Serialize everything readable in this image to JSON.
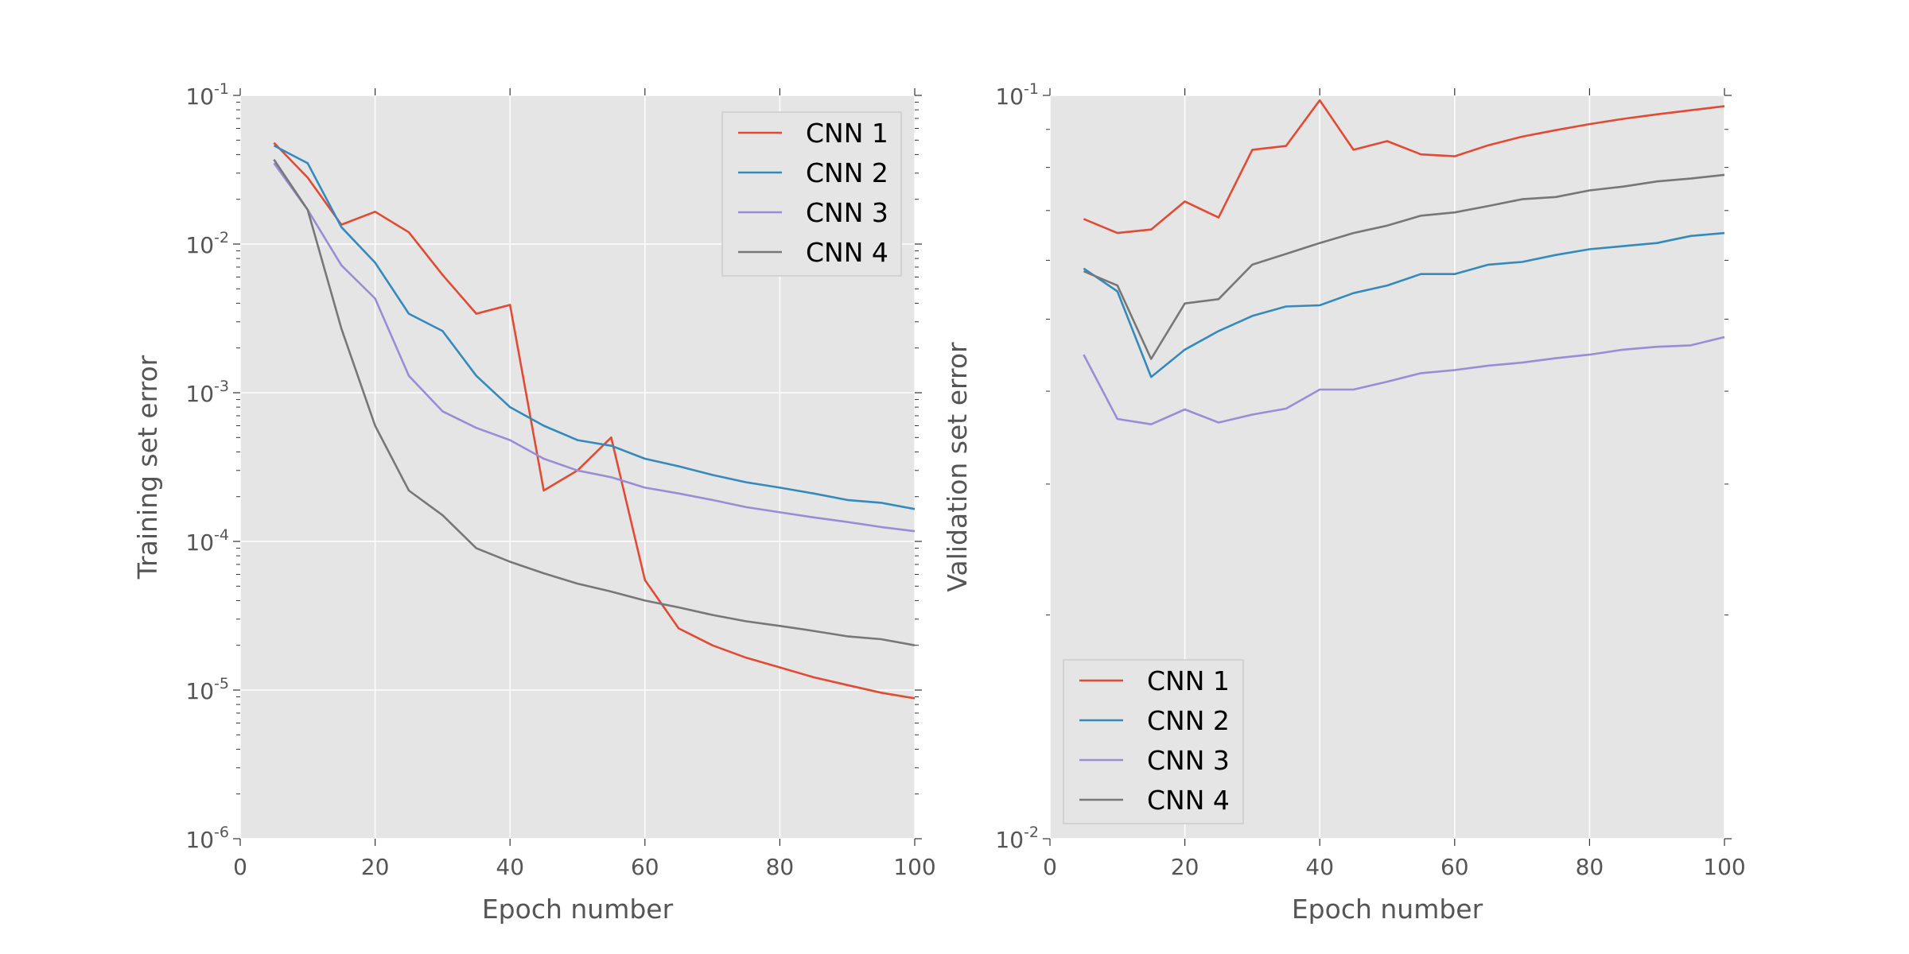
{
  "colors": {
    "background": "#ffffff",
    "axes_face": "#e5e5e5",
    "grid": "#ffffff",
    "tick_text": "#555555",
    "label_text": "#555555",
    "legend_text": "#000000"
  },
  "chart_data": [
    {
      "type": "line",
      "xlabel": "Epoch number",
      "ylabel": "Training set error",
      "xlim": [
        0,
        100
      ],
      "ylim": [
        1e-06,
        0.1
      ],
      "yscale": "log",
      "grid": true,
      "legend_position": "top-right",
      "x_ticks": [
        0,
        20,
        40,
        60,
        80,
        100
      ],
      "y_ticks": [
        {
          "value": 1e-06,
          "base": "10",
          "exp": "-6"
        },
        {
          "value": 1e-05,
          "base": "10",
          "exp": "-5"
        },
        {
          "value": 0.0001,
          "base": "10",
          "exp": "-4"
        },
        {
          "value": 0.001,
          "base": "10",
          "exp": "-3"
        },
        {
          "value": 0.01,
          "base": "10",
          "exp": "-2"
        },
        {
          "value": 0.1,
          "base": "10",
          "exp": "-1"
        }
      ],
      "x": [
        5,
        10,
        15,
        20,
        25,
        30,
        35,
        40,
        45,
        50,
        55,
        60,
        65,
        70,
        75,
        80,
        85,
        90,
        95,
        100
      ],
      "series": [
        {
          "name": "CNN 1",
          "color": "#e24a33",
          "values": [
            0.048,
            0.028,
            0.0135,
            0.0165,
            0.012,
            0.0062,
            0.0034,
            0.0039,
            0.00022,
            0.0003,
            0.0005,
            5.5e-05,
            2.6e-05,
            2e-05,
            1.65e-05,
            1.42e-05,
            1.22e-05,
            1.08e-05,
            9.6e-06,
            8.8e-06
          ]
        },
        {
          "name": "CNN 2",
          "color": "#348abd",
          "values": [
            0.046,
            0.035,
            0.013,
            0.0075,
            0.0034,
            0.0026,
            0.0013,
            0.0008,
            0.0006,
            0.00048,
            0.00044,
            0.00036,
            0.00032,
            0.00028,
            0.00025,
            0.00023,
            0.00021,
            0.00019,
            0.000182,
            0.000165
          ]
        },
        {
          "name": "CNN 3",
          "color": "#988ed5",
          "values": [
            0.035,
            0.017,
            0.0072,
            0.0043,
            0.0013,
            0.00075,
            0.00058,
            0.00048,
            0.00036,
            0.0003,
            0.00027,
            0.00023,
            0.00021,
            0.00019,
            0.00017,
            0.000157,
            0.000145,
            0.000135,
            0.000125,
            0.000117
          ]
        },
        {
          "name": "CNN 4",
          "color": "#777777",
          "values": [
            0.037,
            0.017,
            0.0027,
            0.0006,
            0.00022,
            0.00015,
            9e-05,
            7.3e-05,
            6.1e-05,
            5.2e-05,
            4.6e-05,
            4e-05,
            3.6e-05,
            3.2e-05,
            2.9e-05,
            2.7e-05,
            2.5e-05,
            2.3e-05,
            2.2e-05,
            2e-05
          ]
        }
      ]
    },
    {
      "type": "line",
      "xlabel": "Epoch number",
      "ylabel": "Validation set error",
      "xlim": [
        0,
        100
      ],
      "ylim": [
        0.01,
        0.1
      ],
      "yscale": "log",
      "grid": true,
      "legend_position": "bottom-left",
      "x_ticks": [
        0,
        20,
        40,
        60,
        80,
        100
      ],
      "y_ticks": [
        {
          "value": 0.01,
          "base": "10",
          "exp": "-2"
        },
        {
          "value": 0.1,
          "base": "10",
          "exp": "-1"
        }
      ],
      "x": [
        5,
        10,
        15,
        20,
        25,
        30,
        35,
        40,
        45,
        50,
        55,
        60,
        65,
        70,
        75,
        80,
        85,
        90,
        95,
        100
      ],
      "series": [
        {
          "name": "CNN 1",
          "color": "#e24a33",
          "values": [
            0.0682,
            0.0653,
            0.066,
            0.072,
            0.0685,
            0.0845,
            0.0855,
            0.0985,
            0.0845,
            0.0868,
            0.0833,
            0.0828,
            0.0857,
            0.088,
            0.0898,
            0.0915,
            0.093,
            0.0943,
            0.0955,
            0.0967
          ]
        },
        {
          "name": "CNN 2",
          "color": "#348abd",
          "values": [
            0.0585,
            0.0545,
            0.0418,
            0.0455,
            0.0482,
            0.0505,
            0.052,
            0.0522,
            0.0542,
            0.0555,
            0.0575,
            0.0575,
            0.0592,
            0.0597,
            0.061,
            0.0621,
            0.0627,
            0.0633,
            0.0647,
            0.0653
          ]
        },
        {
          "name": "CNN 3",
          "color": "#988ed5",
          "values": [
            0.0448,
            0.0367,
            0.0361,
            0.0378,
            0.0363,
            0.0372,
            0.0379,
            0.0402,
            0.0402,
            0.0412,
            0.0423,
            0.0427,
            0.0433,
            0.0437,
            0.0443,
            0.0448,
            0.0455,
            0.0459,
            0.0461,
            0.0473
          ]
        },
        {
          "name": "CNN 4",
          "color": "#777777",
          "values": [
            0.058,
            0.0555,
            0.0442,
            0.0525,
            0.0532,
            0.0592,
            0.0612,
            0.0633,
            0.0653,
            0.0668,
            0.0689,
            0.0696,
            0.071,
            0.0725,
            0.073,
            0.0745,
            0.0754,
            0.0766,
            0.0773,
            0.0782
          ]
        }
      ]
    }
  ]
}
